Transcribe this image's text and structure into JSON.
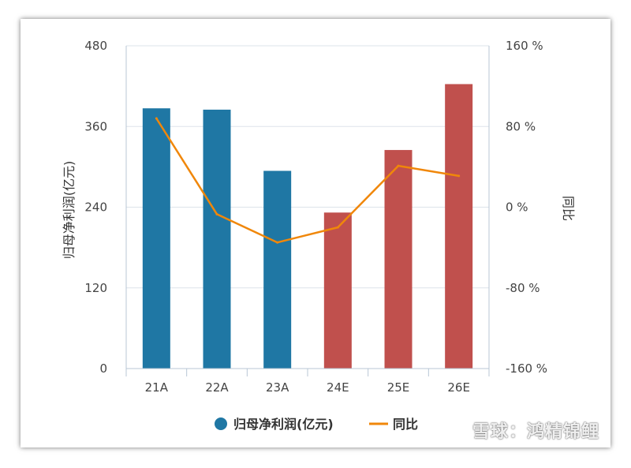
{
  "chart_data": {
    "type": "bar",
    "categories": [
      "21A",
      "22A",
      "23A",
      "24E",
      "25E",
      "26E"
    ],
    "series": [
      {
        "name": "归母净利润(亿元)",
        "kind": "bar",
        "axis": "left",
        "values": [
          387,
          385,
          294,
          232,
          325,
          423
        ],
        "point_colors": [
          "#1f77a4",
          "#1f77a4",
          "#1f77a4",
          "#c0504d",
          "#c0504d",
          "#c0504d"
        ]
      },
      {
        "name": "同比",
        "kind": "line",
        "axis": "right",
        "values": [
          88,
          -7,
          -35,
          -20,
          41,
          31
        ],
        "color": "#f0870a"
      }
    ],
    "y_left": {
      "label": "归母净利润(亿元)",
      "lim": [
        0,
        480
      ],
      "ticks": [
        "0",
        "120",
        "240",
        "360",
        "480"
      ],
      "tick_values": [
        0,
        120,
        240,
        360,
        480
      ]
    },
    "y_right": {
      "label": "同比",
      "lim": [
        -160,
        160
      ],
      "ticks": [
        "-160 %",
        "-80 %",
        "0 %",
        "80 %",
        "160 %"
      ],
      "tick_values": [
        -160,
        -80,
        0,
        80,
        160
      ]
    },
    "grid": true,
    "legend": "bottom-center",
    "legend_marker_color": "#1f77a4"
  },
  "watermark": "雪球：鸿精锦鲤"
}
